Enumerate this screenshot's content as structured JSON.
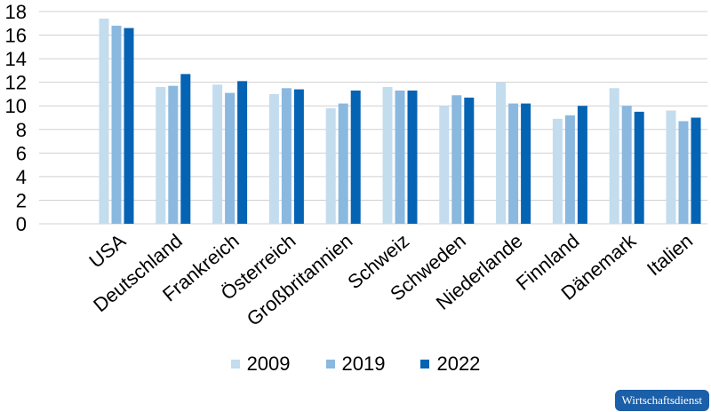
{
  "chart_data": {
    "type": "bar",
    "title": "",
    "xlabel": "",
    "ylabel": "",
    "ylim": [
      0,
      18
    ],
    "yticks": [
      0,
      2,
      4,
      6,
      8,
      10,
      12,
      14,
      16,
      18
    ],
    "grid": true,
    "legend": "bottom",
    "categories": [
      "USA",
      "Deutschland",
      "Frankreich",
      "Österreich",
      "Großbritannien",
      "Schweiz",
      "Schweden",
      "Niederlande",
      "Finnland",
      "Dänemark",
      "Italien"
    ],
    "series": [
      {
        "name": "2009",
        "color": "#c3dcee",
        "values": [
          17.4,
          11.6,
          11.8,
          11.0,
          9.8,
          11.6,
          10.0,
          12.0,
          8.9,
          11.5,
          9.6
        ]
      },
      {
        "name": "2019",
        "color": "#8ab8df",
        "values": [
          16.8,
          11.7,
          11.1,
          11.5,
          10.2,
          11.3,
          10.9,
          10.2,
          9.2,
          10.0,
          8.7
        ]
      },
      {
        "name": "2022",
        "color": "#0563b4",
        "values": [
          16.6,
          12.7,
          12.1,
          11.4,
          11.3,
          11.3,
          10.7,
          10.2,
          10.0,
          9.5,
          9.0
        ]
      }
    ]
  },
  "source_badge": "Wirtschaftsdienst"
}
